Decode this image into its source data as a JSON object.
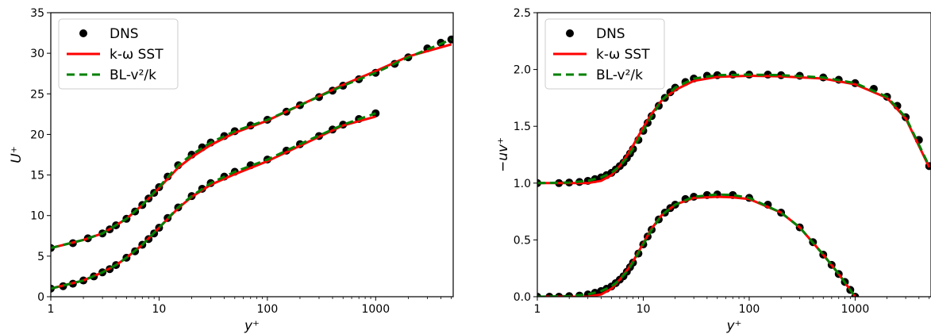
{
  "chart_data": [
    {
      "type": "line",
      "xscale": "log",
      "xlim": [
        1,
        5200
      ],
      "ylim": [
        0,
        35
      ],
      "xticks": [
        1,
        10,
        100,
        1000
      ],
      "xtick_labels": [
        "1",
        "10",
        "100",
        "1000"
      ],
      "yticks": [
        0,
        5,
        10,
        15,
        20,
        25,
        30,
        35
      ],
      "ytick_labels": [
        "0",
        "5",
        "10",
        "15",
        "20",
        "25",
        "30",
        "35"
      ],
      "xlabel": "y⁺",
      "ylabel": "U⁺",
      "legend": {
        "placement": "top-left",
        "entries": [
          "DNS",
          "k-ω SST",
          "BL-v²/k"
        ]
      },
      "grid": false,
      "series": [
        {
          "name": "DNS",
          "style": "markers",
          "color": "#000000",
          "curves": [
            {
              "x": [
                1,
                1.3,
                1.6,
                2,
                2.5,
                3,
                3.5,
                4,
                5,
                6,
                7,
                8,
                9,
                10,
                12,
                15,
                20,
                25,
                30,
                40,
                50,
                70,
                100,
                150,
                200,
                300,
                400,
                500,
                700,
                1000
              ],
              "y": [
                1.0,
                1.3,
                1.6,
                2.0,
                2.5,
                3.0,
                3.4,
                3.9,
                4.8,
                5.6,
                6.4,
                7.1,
                7.8,
                8.5,
                9.7,
                11.0,
                12.4,
                13.3,
                14.0,
                14.8,
                15.4,
                16.2,
                16.9,
                18.0,
                18.8,
                19.8,
                20.6,
                21.2,
                21.9,
                22.6
              ]
            },
            {
              "x": [
                1,
                1.6,
                2.2,
                3,
                3.5,
                4,
                5,
                6,
                7,
                8,
                9,
                10,
                12,
                15,
                20,
                25,
                30,
                40,
                50,
                70,
                100,
                150,
                200,
                300,
                400,
                500,
                700,
                1000,
                1500,
                2000,
                3000,
                4000,
                5000
              ],
              "y": [
                6.0,
                6.6,
                7.2,
                7.8,
                8.3,
                8.8,
                9.6,
                10.5,
                11.3,
                12.1,
                12.8,
                13.5,
                14.8,
                16.2,
                17.5,
                18.4,
                19.0,
                19.8,
                20.4,
                21.1,
                21.8,
                22.8,
                23.6,
                24.6,
                25.4,
                26.0,
                26.8,
                27.6,
                28.7,
                29.5,
                30.6,
                31.3,
                31.7
              ]
            }
          ]
        },
        {
          "name": "k-ω SST",
          "style": "solid",
          "color": "#ff0000",
          "curves": [
            {
              "x": [
                1,
                2,
                3,
                4,
                5,
                7,
                10,
                15,
                20,
                30,
                50,
                100,
                200,
                500,
                1000
              ],
              "y": [
                1.0,
                2.0,
                3.0,
                3.9,
                4.8,
                6.4,
                8.5,
                10.9,
                12.3,
                13.8,
                15.1,
                16.7,
                18.6,
                21.1,
                22.2
              ]
            },
            {
              "x": [
                1,
                2,
                3,
                5,
                7,
                10,
                15,
                20,
                30,
                50,
                100,
                200,
                500,
                1000,
                2000,
                5000
              ],
              "y": [
                6.0,
                7.0,
                7.8,
                9.6,
                11.3,
                13.4,
                15.9,
                17.2,
                18.7,
                20.2,
                21.7,
                23.6,
                26.1,
                27.8,
                29.6,
                31.1
              ]
            }
          ]
        },
        {
          "name": "BL-v²/k",
          "style": "dashed",
          "color": "#008000",
          "curves": [
            {
              "x": [
                1,
                2,
                3,
                4,
                5,
                7,
                10,
                15,
                20,
                30,
                50,
                100,
                200,
                500,
                1000
              ],
              "y": [
                1.0,
                2.0,
                3.0,
                3.9,
                4.8,
                6.4,
                8.5,
                11.0,
                12.4,
                14.0,
                15.4,
                16.9,
                18.8,
                21.2,
                22.6
              ]
            },
            {
              "x": [
                1,
                2,
                3,
                5,
                7,
                10,
                15,
                20,
                30,
                50,
                100,
                200,
                500,
                1000,
                2000,
                5000
              ],
              "y": [
                6.0,
                7.0,
                7.8,
                9.6,
                11.3,
                13.5,
                16.2,
                17.5,
                19.0,
                20.4,
                21.8,
                23.6,
                26.0,
                27.6,
                29.5,
                31.7
              ]
            }
          ]
        }
      ]
    },
    {
      "type": "line",
      "xscale": "log",
      "xlim": [
        1,
        5200
      ],
      "ylim": [
        0,
        2.5
      ],
      "xticks": [
        1,
        10,
        100,
        1000
      ],
      "xtick_labels": [
        "1",
        "10",
        "100",
        "1000"
      ],
      "yticks": [
        0,
        0.5,
        1.0,
        1.5,
        2.0,
        2.5
      ],
      "ytick_labels": [
        "0.0",
        "0.5",
        "1.0",
        "1.5",
        "2.0",
        "2.5"
      ],
      "xlabel": "y⁺",
      "ylabel": "−uv⁺",
      "legend": {
        "placement": "top-left",
        "entries": [
          "DNS",
          "k-ω SST",
          "BL-v²/k"
        ]
      },
      "grid": false,
      "series": [
        {
          "name": "DNS",
          "style": "markers",
          "color": "#000000",
          "curves": [
            {
              "x": [
                1,
                1.3,
                1.6,
                2,
                2.5,
                3,
                3.5,
                4,
                4.5,
                5,
                5.5,
                6,
                6.5,
                7,
                7.5,
                8,
                9,
                10,
                11,
                12,
                14,
                16,
                18,
                20,
                25,
                30,
                40,
                50,
                70,
                100,
                150,
                200,
                300,
                400,
                500,
                600,
                700,
                800,
                900,
                1000
              ],
              "y": [
                0.0,
                0.0,
                0.0,
                0.005,
                0.01,
                0.02,
                0.035,
                0.05,
                0.07,
                0.09,
                0.12,
                0.15,
                0.18,
                0.22,
                0.26,
                0.3,
                0.38,
                0.46,
                0.53,
                0.59,
                0.68,
                0.74,
                0.78,
                0.81,
                0.86,
                0.88,
                0.895,
                0.9,
                0.895,
                0.87,
                0.81,
                0.74,
                0.61,
                0.48,
                0.37,
                0.28,
                0.2,
                0.13,
                0.06,
                0.0
              ]
            },
            {
              "x": [
                1,
                1.6,
                2,
                2.5,
                3,
                3.5,
                4,
                4.5,
                5,
                5.5,
                6,
                6.5,
                7,
                7.5,
                8,
                9,
                10,
                11,
                12,
                14,
                16,
                18,
                20,
                25,
                30,
                40,
                50,
                70,
                100,
                150,
                200,
                300,
                500,
                700,
                1000,
                1500,
                2000,
                2500,
                3000,
                4000,
                5000
              ],
              "y": [
                1.0,
                1.0,
                1.005,
                1.01,
                1.02,
                1.035,
                1.05,
                1.07,
                1.09,
                1.12,
                1.15,
                1.18,
                1.22,
                1.26,
                1.3,
                1.38,
                1.46,
                1.53,
                1.59,
                1.68,
                1.75,
                1.8,
                1.84,
                1.89,
                1.92,
                1.945,
                1.95,
                1.955,
                1.955,
                1.955,
                1.95,
                1.945,
                1.93,
                1.91,
                1.88,
                1.83,
                1.76,
                1.68,
                1.58,
                1.38,
                1.15
              ]
            }
          ]
        },
        {
          "name": "k-ω SST",
          "style": "solid",
          "color": "#ff0000",
          "curves": [
            {
              "x": [
                1,
                2,
                3,
                4,
                5,
                6,
                7,
                8,
                10,
                12,
                15,
                20,
                30,
                50,
                70,
                100,
                200,
                300,
                500,
                700,
                1000
              ],
              "y": [
                0.0,
                0.0,
                0.0,
                0.02,
                0.07,
                0.15,
                0.23,
                0.31,
                0.47,
                0.6,
                0.72,
                0.81,
                0.87,
                0.88,
                0.875,
                0.86,
                0.74,
                0.61,
                0.37,
                0.2,
                0.0
              ]
            },
            {
              "x": [
                1,
                2,
                3,
                4,
                5,
                6,
                7,
                8,
                10,
                12,
                15,
                20,
                30,
                50,
                100,
                200,
                500,
                1000,
                2000,
                3000,
                5000
              ],
              "y": [
                1.0,
                1.0,
                1.0,
                1.02,
                1.07,
                1.15,
                1.24,
                1.33,
                1.49,
                1.61,
                1.73,
                1.82,
                1.9,
                1.935,
                1.945,
                1.94,
                1.92,
                1.87,
                1.75,
                1.57,
                1.14
              ]
            }
          ]
        },
        {
          "name": "BL-v²/k",
          "style": "dashed",
          "color": "#008000",
          "curves": [
            {
              "x": [
                1,
                2,
                3,
                4,
                5,
                6,
                7,
                8,
                10,
                12,
                15,
                20,
                30,
                50,
                70,
                100,
                200,
                300,
                500,
                700,
                1000
              ],
              "y": [
                0.0,
                0.005,
                0.02,
                0.05,
                0.09,
                0.15,
                0.22,
                0.3,
                0.46,
                0.59,
                0.72,
                0.81,
                0.88,
                0.9,
                0.895,
                0.87,
                0.74,
                0.61,
                0.37,
                0.2,
                0.0
              ]
            },
            {
              "x": [
                1,
                2,
                3,
                4,
                5,
                6,
                7,
                8,
                10,
                12,
                15,
                20,
                30,
                50,
                100,
                200,
                500,
                1000,
                2000,
                3000,
                5000
              ],
              "y": [
                1.0,
                1.005,
                1.02,
                1.05,
                1.09,
                1.15,
                1.22,
                1.3,
                1.46,
                1.59,
                1.73,
                1.84,
                1.92,
                1.95,
                1.955,
                1.95,
                1.93,
                1.88,
                1.76,
                1.58,
                1.15
              ]
            }
          ]
        }
      ]
    }
  ]
}
